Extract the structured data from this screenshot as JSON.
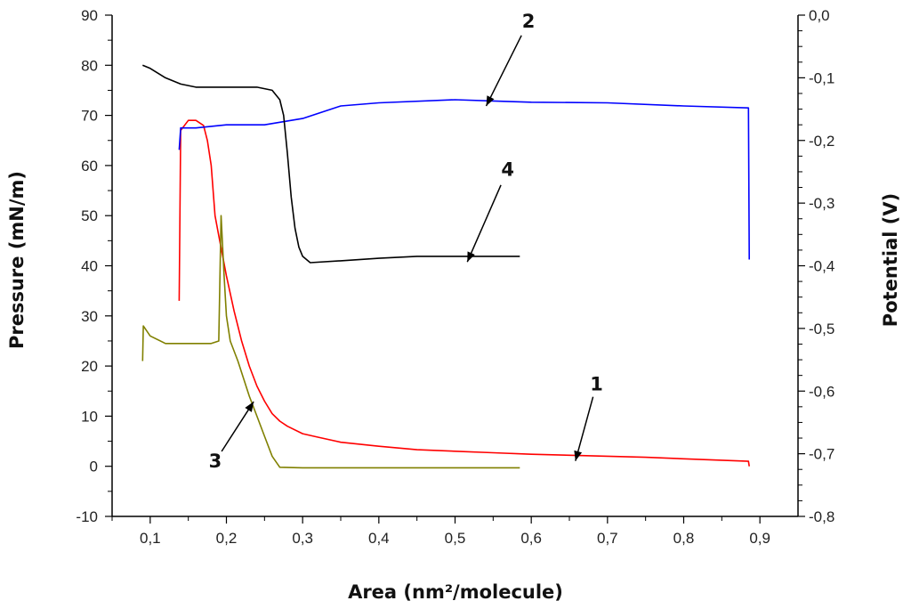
{
  "chart_data": {
    "type": "line",
    "xlabel": "Area (nm²/molecule)",
    "ylabel_left": "Pressure (mN/m)",
    "ylabel_right": "Potential (V)",
    "xlim": [
      0.05,
      0.95
    ],
    "ylim_left": [
      -10,
      90
    ],
    "ylim_right": [
      -0.8,
      0.0
    ],
    "xticks": [
      "0,1",
      "0,2",
      "0,3",
      "0,4",
      "0,5",
      "0,6",
      "0,7",
      "0,8",
      "0,9"
    ],
    "yticks_left": [
      "-10",
      "0",
      "10",
      "20",
      "30",
      "40",
      "50",
      "60",
      "70",
      "80",
      "90"
    ],
    "yticks_right": [
      "-0,8",
      "-0,7",
      "-0,6",
      "-0,5",
      "-0,4",
      "-0,3",
      "-0,2",
      "-0,1",
      "0,0"
    ],
    "grid": false,
    "series": [
      {
        "name": "1",
        "axis": "left",
        "color": "#ff0000",
        "points": [
          [
            0.138,
            33
          ],
          [
            0.14,
            67
          ],
          [
            0.15,
            69
          ],
          [
            0.16,
            69
          ],
          [
            0.17,
            68
          ],
          [
            0.175,
            65
          ],
          [
            0.18,
            60
          ],
          [
            0.185,
            50
          ],
          [
            0.19,
            46
          ],
          [
            0.195,
            42
          ],
          [
            0.2,
            38
          ],
          [
            0.21,
            31
          ],
          [
            0.22,
            25
          ],
          [
            0.23,
            20
          ],
          [
            0.24,
            16
          ],
          [
            0.25,
            13
          ],
          [
            0.26,
            10.5
          ],
          [
            0.27,
            9
          ],
          [
            0.28,
            8
          ],
          [
            0.3,
            6.5
          ],
          [
            0.32,
            5.8
          ],
          [
            0.35,
            4.8
          ],
          [
            0.4,
            4
          ],
          [
            0.45,
            3.3
          ],
          [
            0.5,
            3
          ],
          [
            0.55,
            2.7
          ],
          [
            0.6,
            2.4
          ],
          [
            0.65,
            2.2
          ],
          [
            0.7,
            2
          ],
          [
            0.75,
            1.8
          ],
          [
            0.8,
            1.5
          ],
          [
            0.85,
            1.2
          ],
          [
            0.885,
            1
          ],
          [
            0.886,
            0
          ]
        ]
      },
      {
        "name": "2",
        "axis": "right",
        "color": "#0000ff",
        "points": [
          [
            0.138,
            -0.215
          ],
          [
            0.14,
            -0.18
          ],
          [
            0.16,
            -0.18
          ],
          [
            0.2,
            -0.175
          ],
          [
            0.25,
            -0.175
          ],
          [
            0.3,
            -0.165
          ],
          [
            0.35,
            -0.145
          ],
          [
            0.4,
            -0.14
          ],
          [
            0.5,
            -0.135
          ],
          [
            0.55,
            -0.137
          ],
          [
            0.6,
            -0.139
          ],
          [
            0.7,
            -0.14
          ],
          [
            0.8,
            -0.145
          ],
          [
            0.885,
            -0.148
          ],
          [
            0.886,
            -0.39
          ]
        ]
      },
      {
        "name": "3",
        "axis": "left",
        "color": "#808000",
        "points": [
          [
            0.09,
            21
          ],
          [
            0.091,
            28
          ],
          [
            0.1,
            26
          ],
          [
            0.12,
            24.5
          ],
          [
            0.15,
            24.5
          ],
          [
            0.18,
            24.5
          ],
          [
            0.19,
            25
          ],
          [
            0.193,
            50
          ],
          [
            0.197,
            38
          ],
          [
            0.2,
            30
          ],
          [
            0.205,
            25
          ],
          [
            0.215,
            21
          ],
          [
            0.23,
            14
          ],
          [
            0.24,
            10
          ],
          [
            0.25,
            6
          ],
          [
            0.26,
            2
          ],
          [
            0.27,
            -0.2
          ],
          [
            0.3,
            -0.3
          ],
          [
            0.4,
            -0.3
          ],
          [
            0.5,
            -0.3
          ],
          [
            0.585,
            -0.3
          ]
        ]
      },
      {
        "name": "4",
        "axis": "right",
        "color": "#000000",
        "points": [
          [
            0.09,
            -0.08
          ],
          [
            0.1,
            -0.085
          ],
          [
            0.12,
            -0.1
          ],
          [
            0.14,
            -0.11
          ],
          [
            0.16,
            -0.115
          ],
          [
            0.2,
            -0.115
          ],
          [
            0.24,
            -0.115
          ],
          [
            0.26,
            -0.12
          ],
          [
            0.27,
            -0.135
          ],
          [
            0.275,
            -0.16
          ],
          [
            0.28,
            -0.22
          ],
          [
            0.285,
            -0.29
          ],
          [
            0.29,
            -0.34
          ],
          [
            0.295,
            -0.37
          ],
          [
            0.3,
            -0.385
          ],
          [
            0.31,
            -0.395
          ],
          [
            0.35,
            -0.392
          ],
          [
            0.4,
            -0.388
          ],
          [
            0.45,
            -0.385
          ],
          [
            0.5,
            -0.385
          ],
          [
            0.55,
            -0.385
          ],
          [
            0.585,
            -0.385
          ]
        ]
      }
    ],
    "annotations": [
      {
        "text": "1",
        "target": [
          0.66,
          2.2
        ],
        "axis": "left"
      },
      {
        "text": "2",
        "target": [
          0.545,
          -0.135
        ],
        "axis": "right"
      },
      {
        "text": "3",
        "target": [
          0.232,
          12
        ],
        "axis": "left"
      },
      {
        "text": "4",
        "target": [
          0.52,
          -0.383
        ],
        "axis": "right"
      }
    ]
  }
}
